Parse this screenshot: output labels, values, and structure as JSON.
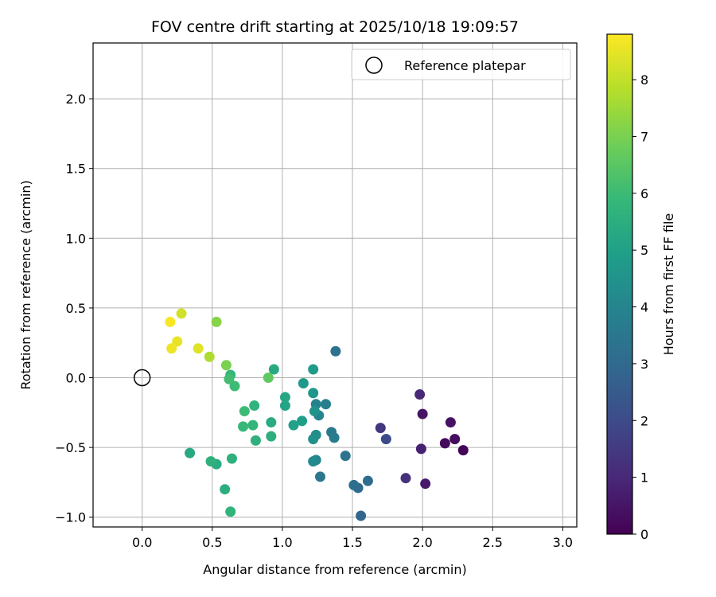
{
  "chart_data": {
    "type": "scatter",
    "title": "FOV centre drift starting at 2025/10/18 19:09:57",
    "xlabel": "Angular distance from reference (arcmin)",
    "ylabel": "Rotation from reference (arcmin)",
    "xlim": [
      -0.35,
      3.1
    ],
    "ylim": [
      -1.07,
      2.4
    ],
    "xticks": [
      0.0,
      0.5,
      1.0,
      1.5,
      2.0,
      2.5,
      3.0
    ],
    "xtick_labels": [
      "0.0",
      "0.5",
      "1.0",
      "1.5",
      "2.0",
      "2.5",
      "3.0"
    ],
    "yticks": [
      -1.0,
      -0.5,
      0.0,
      0.5,
      1.0,
      1.5,
      2.0
    ],
    "ytick_labels": [
      "−1.0",
      "−0.5",
      "0.0",
      "0.5",
      "1.0",
      "1.5",
      "2.0"
    ],
    "grid": true,
    "legend": {
      "placement": "top-right",
      "entries": [
        "Reference platepar"
      ]
    },
    "reference_point": {
      "x": 0.0,
      "y": 0.0
    },
    "colorbar": {
      "label": "Hours from first FF file",
      "range": [
        0,
        8.8
      ],
      "ticks": [
        0,
        1,
        2,
        3,
        4,
        5,
        6,
        7,
        8
      ],
      "tick_labels": [
        "0",
        "1",
        "2",
        "3",
        "4",
        "5",
        "6",
        "7",
        "8"
      ],
      "colormap": "viridis"
    },
    "points": [
      {
        "x": 2.29,
        "y": -0.52,
        "hours": 0.1
      },
      {
        "x": 2.16,
        "y": -0.47,
        "hours": 0.2
      },
      {
        "x": 2.23,
        "y": -0.44,
        "hours": 0.3
      },
      {
        "x": 2.2,
        "y": -0.32,
        "hours": 0.4
      },
      {
        "x": 2.0,
        "y": -0.26,
        "hours": 0.5
      },
      {
        "x": 2.02,
        "y": -0.76,
        "hours": 0.6
      },
      {
        "x": 1.99,
        "y": -0.51,
        "hours": 0.8
      },
      {
        "x": 1.98,
        "y": -0.12,
        "hours": 1.0
      },
      {
        "x": 1.88,
        "y": -0.72,
        "hours": 1.2
      },
      {
        "x": 1.7,
        "y": -0.36,
        "hours": 1.4
      },
      {
        "x": 1.74,
        "y": -0.44,
        "hours": 2.0
      },
      {
        "x": 1.56,
        "y": -0.99,
        "hours": 2.9
      },
      {
        "x": 1.54,
        "y": -0.79,
        "hours": 3.0
      },
      {
        "x": 1.61,
        "y": -0.74,
        "hours": 3.1
      },
      {
        "x": 1.51,
        "y": -0.77,
        "hours": 3.2
      },
      {
        "x": 1.38,
        "y": 0.19,
        "hours": 3.3
      },
      {
        "x": 1.45,
        "y": -0.56,
        "hours": 3.4
      },
      {
        "x": 1.27,
        "y": -0.71,
        "hours": 3.5
      },
      {
        "x": 1.35,
        "y": -0.39,
        "hours": 3.6
      },
      {
        "x": 1.37,
        "y": -0.43,
        "hours": 3.7
      },
      {
        "x": 1.31,
        "y": -0.19,
        "hours": 3.8
      },
      {
        "x": 1.24,
        "y": -0.19,
        "hours": 3.9
      },
      {
        "x": 1.26,
        "y": -0.27,
        "hours": 4.0
      },
      {
        "x": 1.24,
        "y": -0.59,
        "hours": 4.1
      },
      {
        "x": 1.22,
        "y": -0.6,
        "hours": 4.2
      },
      {
        "x": 1.24,
        "y": -0.41,
        "hours": 4.3
      },
      {
        "x": 1.22,
        "y": -0.44,
        "hours": 4.4
      },
      {
        "x": 1.23,
        "y": -0.24,
        "hours": 4.5
      },
      {
        "x": 1.22,
        "y": -0.11,
        "hours": 4.6
      },
      {
        "x": 1.15,
        "y": -0.04,
        "hours": 4.7
      },
      {
        "x": 1.22,
        "y": 0.06,
        "hours": 4.8
      },
      {
        "x": 1.14,
        "y": -0.31,
        "hours": 4.9
      },
      {
        "x": 1.08,
        "y": -0.34,
        "hours": 5.0
      },
      {
        "x": 1.02,
        "y": -0.2,
        "hours": 5.1
      },
      {
        "x": 1.02,
        "y": -0.14,
        "hours": 5.2
      },
      {
        "x": 0.94,
        "y": 0.06,
        "hours": 5.3
      },
      {
        "x": 0.92,
        "y": -0.32,
        "hours": 5.4
      },
      {
        "x": 0.92,
        "y": -0.42,
        "hours": 5.5
      },
      {
        "x": 0.81,
        "y": -0.45,
        "hours": 5.6
      },
      {
        "x": 0.8,
        "y": -0.2,
        "hours": 5.7
      },
      {
        "x": 0.79,
        "y": -0.34,
        "hours": 5.8
      },
      {
        "x": 0.72,
        "y": -0.35,
        "hours": 5.9
      },
      {
        "x": 0.73,
        "y": -0.24,
        "hours": 6.0
      },
      {
        "x": 0.66,
        "y": -0.06,
        "hours": 6.0
      },
      {
        "x": 0.63,
        "y": 0.02,
        "hours": 5.8
      },
      {
        "x": 0.62,
        "y": -0.01,
        "hours": 6.1
      },
      {
        "x": 0.64,
        "y": -0.58,
        "hours": 5.6
      },
      {
        "x": 0.63,
        "y": -0.96,
        "hours": 5.7
      },
      {
        "x": 0.59,
        "y": -0.8,
        "hours": 5.5
      },
      {
        "x": 0.53,
        "y": -0.62,
        "hours": 5.4
      },
      {
        "x": 0.49,
        "y": -0.6,
        "hours": 5.6
      },
      {
        "x": 0.34,
        "y": -0.54,
        "hours": 5.3
      },
      {
        "x": 0.9,
        "y": 0.0,
        "hours": 6.6
      },
      {
        "x": 0.6,
        "y": 0.09,
        "hours": 7.0
      },
      {
        "x": 0.53,
        "y": 0.4,
        "hours": 7.2
      },
      {
        "x": 0.48,
        "y": 0.15,
        "hours": 7.7
      },
      {
        "x": 0.4,
        "y": 0.21,
        "hours": 8.4
      },
      {
        "x": 0.28,
        "y": 0.46,
        "hours": 8.2
      },
      {
        "x": 0.25,
        "y": 0.26,
        "hours": 8.5
      },
      {
        "x": 0.21,
        "y": 0.21,
        "hours": 8.6
      },
      {
        "x": 0.2,
        "y": 0.4,
        "hours": 8.7
      }
    ]
  }
}
